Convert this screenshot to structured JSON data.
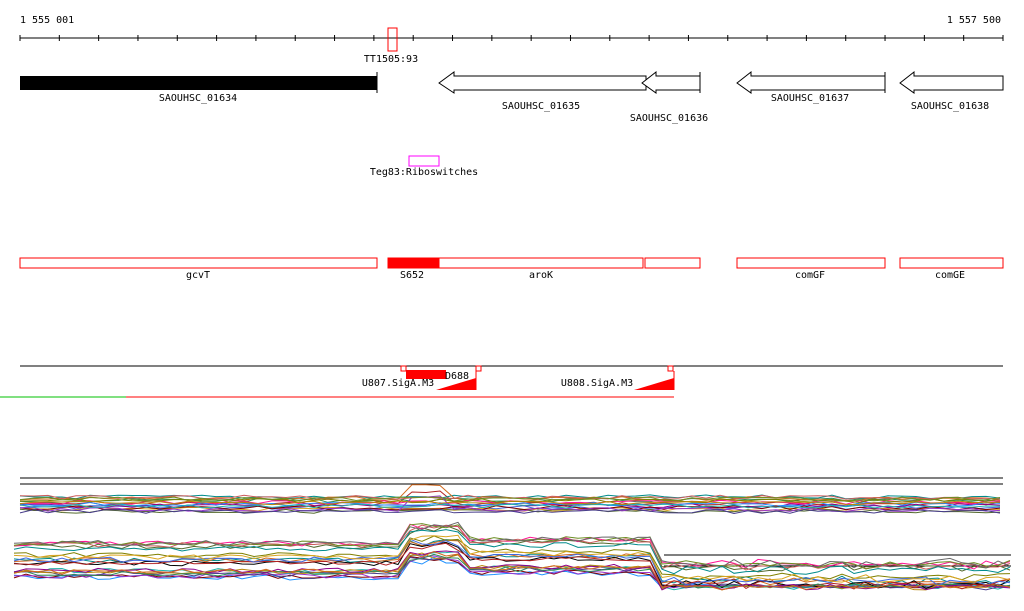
{
  "ruler": {
    "start": "1 555 001",
    "end": "1 557 500"
  },
  "terminator": {
    "label": "TT1505:93"
  },
  "genes": [
    {
      "id": "SAOUHSC_01634",
      "filled": true
    },
    {
      "id": "SAOUHSC_01635",
      "filled": false
    },
    {
      "id": "SAOUHSC_01636",
      "filled": false
    },
    {
      "id": "SAOUHSC_01637",
      "filled": false
    },
    {
      "id": "SAOUHSC_01638",
      "filled": false
    }
  ],
  "riboswitch": {
    "label": "Teg83:Riboswitches",
    "color": "#ff00ff"
  },
  "features": [
    {
      "label": "gcvT"
    },
    {
      "label": "S652"
    },
    {
      "label": "aroK"
    },
    {
      "label": "comGF"
    },
    {
      "label": "comGE"
    }
  ],
  "promoters": [
    {
      "label": "U807.SigA.M3"
    },
    {
      "label": "U808.SigA.M3"
    },
    {
      "label": "D688"
    }
  ],
  "colors": {
    "feature": "#ff0000",
    "promoter": "#ff0000",
    "riboswitch": "#ff00ff",
    "gene": "#000000"
  }
}
